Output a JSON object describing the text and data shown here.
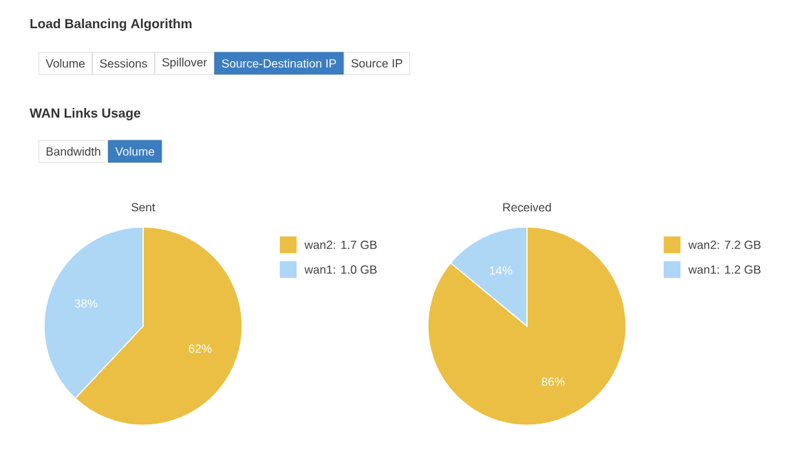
{
  "chart_data": [
    {
      "type": "other",
      "title": "Load Balancing Algorithm",
      "subtitle": "WAN Links Usage",
      "annotations": [
        "Volume",
        "Sessions",
        "Spillover",
        "Source-Destination IP",
        "Source IP",
        "Bandwidth",
        "Volume"
      ]
    },
    {
      "type": "pie",
      "title": "Sent",
      "categories": [
        "wan2: 1.7 GB",
        "wan1: 1.0 GB"
      ],
      "values": [
        62,
        38
      ],
      "colors": [
        "#ebbf43",
        "#aed6f5"
      ],
      "value_labels": [
        "62%",
        "38%"
      ],
      "legend": "right"
    },
    {
      "type": "pie",
      "title": "Received",
      "categories": [
        "wan2: 7.2 GB",
        "wan1: 1.2 GB"
      ],
      "values": [
        86,
        14
      ],
      "colors": [
        "#ebbf43",
        "#aed6f5"
      ],
      "value_labels": [
        "86%",
        "14%"
      ],
      "legend": "right"
    }
  ]
}
